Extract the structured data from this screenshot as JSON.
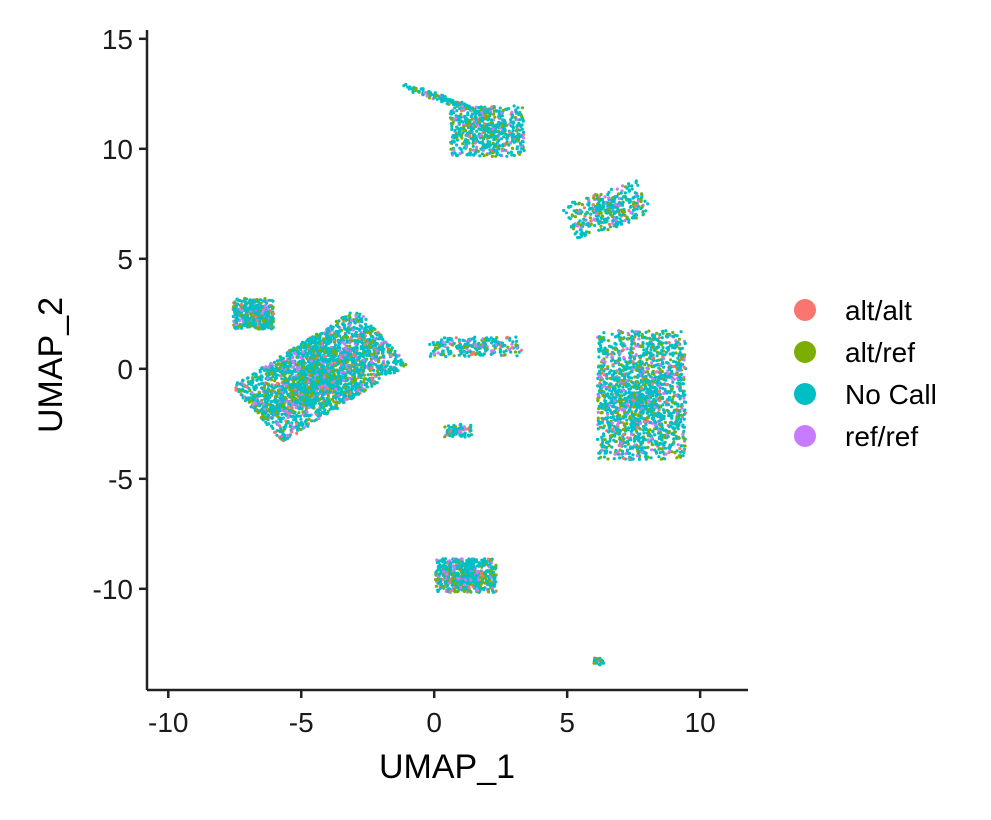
{
  "chart_data": {
    "type": "scatter",
    "xlabel": "UMAP_1",
    "ylabel": "UMAP_2",
    "xlim": [
      -10.8,
      11.8
    ],
    "ylim": [
      -14.6,
      15.4
    ],
    "x_ticks": [
      -10,
      -5,
      0,
      5,
      10
    ],
    "x_tick_labels": [
      "-10",
      "-5",
      "0",
      "5",
      "10"
    ],
    "y_ticks": [
      -10,
      -5,
      0,
      5,
      10,
      15
    ],
    "y_tick_labels": [
      "-10",
      "-5",
      "0",
      "5",
      "10",
      "15"
    ],
    "grid": false,
    "legend_position": "right",
    "series": [
      {
        "name": "alt/alt",
        "color": "#F8766D",
        "proportion": 0.05
      },
      {
        "name": "alt/ref",
        "color": "#7CAE00",
        "proportion": 0.17
      },
      {
        "name": "No Call",
        "color": "#00BFC4",
        "proportion": 0.66
      },
      {
        "name": "ref/ref",
        "color": "#C77CFF",
        "proportion": 0.12
      }
    ],
    "clusters": [
      {
        "id": "large-left",
        "center": [
          -4.3,
          -0.3
        ],
        "spread": [
          2.3,
          1.25
        ],
        "angle_deg": 37,
        "density": 1.0
      },
      {
        "id": "left-upper-lobe",
        "center": [
          -6.8,
          2.5
        ],
        "spread": [
          0.6,
          0.55
        ],
        "angle_deg": 0,
        "density": 0.15
      },
      {
        "id": "large-right",
        "center": [
          7.8,
          -1.2
        ],
        "spread": [
          1.3,
          2.3
        ],
        "angle_deg": 0,
        "density": 0.6
      },
      {
        "id": "bottom-middle",
        "center": [
          1.2,
          -9.4
        ],
        "spread": [
          0.9,
          0.6
        ],
        "angle_deg": 0,
        "density": 0.22
      },
      {
        "id": "top-middle",
        "center": [
          2.0,
          10.8
        ],
        "spread": [
          1.1,
          0.9
        ],
        "angle_deg": 0,
        "density": 0.22
      },
      {
        "id": "top-streak",
        "center": [
          0.5,
          12.2
        ],
        "spread": [
          1.4,
          0.12
        ],
        "angle_deg": -22,
        "density": 0.05
      },
      {
        "id": "right-upper",
        "center": [
          6.5,
          7.2
        ],
        "spread": [
          1.2,
          0.65
        ],
        "angle_deg": 22,
        "density": 0.13
      },
      {
        "id": "middle-strip",
        "center": [
          1.6,
          1.0
        ],
        "spread": [
          1.4,
          0.35
        ],
        "angle_deg": 0,
        "density": 0.08
      },
      {
        "id": "small-mid",
        "center": [
          0.9,
          -2.8
        ],
        "spread": [
          0.4,
          0.25
        ],
        "angle_deg": 0,
        "density": 0.03
      },
      {
        "id": "tiny-bottom-right",
        "center": [
          6.2,
          -13.3
        ],
        "spread": [
          0.15,
          0.12
        ],
        "angle_deg": 0,
        "density": 0.01
      }
    ]
  }
}
